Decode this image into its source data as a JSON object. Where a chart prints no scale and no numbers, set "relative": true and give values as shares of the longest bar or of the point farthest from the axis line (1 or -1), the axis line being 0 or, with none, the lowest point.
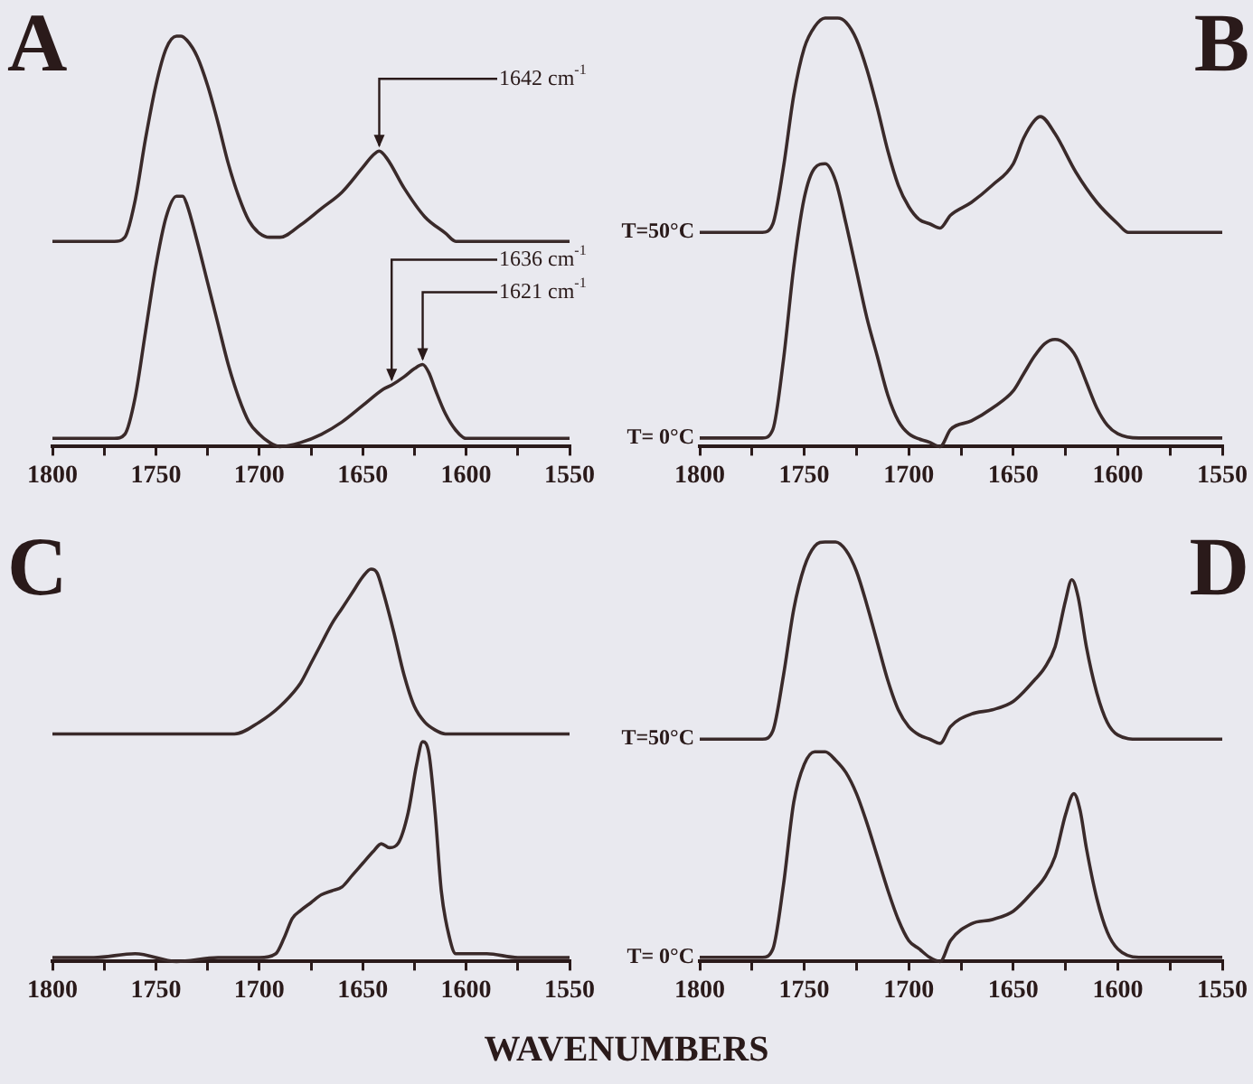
{
  "chart_data": [
    {
      "type": "line",
      "title": "A",
      "relative": true,
      "xlim": [
        1800,
        1550
      ],
      "xticks": [
        1800,
        {
          "value": 1775,
          "label": null
        },
        1750,
        {
          "value": 1725,
          "label": null
        },
        1700,
        {
          "value": 1675,
          "label": null
        },
        1650,
        {
          "value": 1625,
          "label": null
        },
        1600,
        {
          "value": 1575,
          "label": null
        },
        1550
      ],
      "grid": false,
      "legend": false,
      "marker": "none",
      "line_style": "solid",
      "annotations": [
        {
          "text": "1642 cm$^{-1}$",
          "x": 1642,
          "y": 0.72
        },
        {
          "text": "1636 cm$^{-1}$",
          "x": 1636,
          "y": 0.15
        },
        {
          "text": "1621 cm$^{-1}$",
          "x": 1621,
          "y": 0.2
        }
      ],
      "series": [
        {
          "color": "#3a2a2a",
          "x": [
            1800,
            1770,
            1765,
            1760,
            1755,
            1750,
            1745,
            1740,
            1738,
            1735,
            1730,
            1725,
            1720,
            1715,
            1710,
            1705,
            1700,
            1695,
            1690,
            1680,
            1670,
            1660,
            1650,
            1645,
            1642,
            1638,
            1630,
            1620,
            1610,
            1605,
            1600,
            1580,
            1550
          ],
          "values": [
            0.5,
            0.5,
            0.51,
            0.6,
            0.75,
            0.88,
            0.97,
            1.0,
            1.0,
            0.99,
            0.95,
            0.88,
            0.79,
            0.69,
            0.61,
            0.55,
            0.52,
            0.51,
            0.51,
            0.54,
            0.58,
            0.62,
            0.68,
            0.71,
            0.72,
            0.7,
            0.63,
            0.56,
            0.52,
            0.5,
            0.5,
            0.5,
            0.5
          ]
        },
        {
          "color": "#3a2a2a",
          "x": [
            1800,
            1770,
            1765,
            1760,
            1755,
            1750,
            1745,
            1740,
            1737,
            1735,
            1730,
            1725,
            1720,
            1715,
            1710,
            1705,
            1700,
            1695,
            1690,
            1680,
            1670,
            1660,
            1650,
            1640,
            1636,
            1630,
            1625,
            1621,
            1618,
            1615,
            1610,
            1605,
            1600,
            1590,
            1550
          ],
          "values": [
            0.02,
            0.02,
            0.03,
            0.12,
            0.28,
            0.44,
            0.56,
            0.61,
            0.61,
            0.59,
            0.5,
            0.4,
            0.3,
            0.2,
            0.12,
            0.06,
            0.03,
            0.01,
            0,
            0.01,
            0.03,
            0.06,
            0.1,
            0.14,
            0.15,
            0.17,
            0.19,
            0.2,
            0.18,
            0.14,
            0.08,
            0.04,
            0.02,
            0.02,
            0.02
          ]
        }
      ]
    },
    {
      "type": "line",
      "title": "B",
      "relative": true,
      "xlim": [
        1800,
        1550
      ],
      "xticks": [
        1800,
        {
          "value": 1775,
          "label": null
        },
        1750,
        {
          "value": 1725,
          "label": null
        },
        1700,
        {
          "value": 1675,
          "label": null
        },
        1650,
        {
          "value": 1625,
          "label": null
        },
        1600,
        {
          "value": 1575,
          "label": null
        },
        1550
      ],
      "grid": false,
      "legend": false,
      "marker": "none",
      "line_style": "solid",
      "series": [
        {
          "name": "T=50°C",
          "color": "#3a2a2a",
          "x": [
            1800,
            1770,
            1765,
            1760,
            1755,
            1750,
            1745,
            1740,
            1734,
            1730,
            1725,
            1720,
            1715,
            1710,
            1705,
            1700,
            1695,
            1690,
            1685,
            1680,
            1670,
            1660,
            1650,
            1645,
            1640,
            1637,
            1630,
            1620,
            1610,
            1600,
            1595,
            1550
          ],
          "values": [
            0.5,
            0.5,
            0.52,
            0.65,
            0.82,
            0.93,
            0.98,
            1.0,
            1.0,
            0.99,
            0.95,
            0.88,
            0.79,
            0.69,
            0.61,
            0.56,
            0.53,
            0.52,
            0.51,
            0.54,
            0.57,
            0.61,
            0.66,
            0.72,
            0.76,
            0.77,
            0.73,
            0.64,
            0.57,
            0.52,
            0.5,
            0.5
          ]
        },
        {
          "name": "T= 0°C",
          "color": "#3a2a2a",
          "x": [
            1800,
            1770,
            1765,
            1760,
            1755,
            1750,
            1745,
            1740,
            1735,
            1730,
            1725,
            1720,
            1715,
            1710,
            1705,
            1700,
            1690,
            1685,
            1680,
            1670,
            1660,
            1650,
            1645,
            1640,
            1635,
            1630,
            1625,
            1620,
            1615,
            1610,
            1605,
            1600,
            1590,
            1550
          ],
          "values": [
            0.02,
            0.02,
            0.04,
            0.2,
            0.42,
            0.58,
            0.65,
            0.66,
            0.62,
            0.52,
            0.41,
            0.3,
            0.21,
            0.12,
            0.06,
            0.03,
            0.01,
            0,
            0.04,
            0.06,
            0.09,
            0.13,
            0.17,
            0.21,
            0.24,
            0.25,
            0.24,
            0.21,
            0.15,
            0.09,
            0.05,
            0.03,
            0.02,
            0.02
          ]
        }
      ]
    },
    {
      "type": "line",
      "title": "C",
      "relative": true,
      "xlim": [
        1800,
        1550
      ],
      "xlabel": "WAVENUMBERS",
      "xticks": [
        1800,
        {
          "value": 1775,
          "label": null
        },
        1750,
        {
          "value": 1725,
          "label": null
        },
        1700,
        {
          "value": 1675,
          "label": null
        },
        1650,
        {
          "value": 1625,
          "label": null
        },
        1600,
        {
          "value": 1575,
          "label": null
        },
        1550
      ],
      "grid": false,
      "legend": false,
      "marker": "none",
      "line_style": "solid",
      "series": [
        {
          "color": "#3a2a2a",
          "x": [
            1800,
            1780,
            1750,
            1720,
            1712,
            1700,
            1690,
            1680,
            1675,
            1670,
            1665,
            1660,
            1655,
            1650,
            1646,
            1643,
            1640,
            1635,
            1630,
            1625,
            1620,
            1615,
            1610,
            1580,
            1550
          ],
          "values": [
            0.58,
            0.58,
            0.58,
            0.58,
            0.58,
            0.61,
            0.65,
            0.71,
            0.76,
            0.81,
            0.86,
            0.9,
            0.94,
            0.98,
            1.0,
            0.99,
            0.94,
            0.84,
            0.73,
            0.65,
            0.61,
            0.59,
            0.58,
            0.58,
            0.58
          ]
        },
        {
          "color": "#3a2a2a",
          "x": [
            1800,
            1780,
            1760,
            1740,
            1720,
            1700,
            1692,
            1688,
            1684,
            1680,
            1675,
            1670,
            1665,
            1660,
            1655,
            1650,
            1645,
            1641,
            1637,
            1633,
            1628,
            1624,
            1621,
            1618,
            1615,
            1612,
            1608,
            1605,
            1590,
            1575,
            1560,
            1550
          ],
          "values": [
            0.01,
            0.01,
            0.02,
            0,
            0.01,
            0.01,
            0.02,
            0.06,
            0.11,
            0.13,
            0.15,
            0.17,
            0.18,
            0.19,
            0.22,
            0.25,
            0.28,
            0.3,
            0.29,
            0.3,
            0.38,
            0.5,
            0.56,
            0.53,
            0.38,
            0.18,
            0.06,
            0.02,
            0.02,
            0.01,
            0.01,
            0.01
          ]
        }
      ]
    },
    {
      "type": "line",
      "title": "D",
      "relative": true,
      "xlim": [
        1800,
        1550
      ],
      "xticks": [
        1800,
        {
          "value": 1775,
          "label": null
        },
        1750,
        {
          "value": 1725,
          "label": null
        },
        1700,
        {
          "value": 1675,
          "label": null
        },
        1650,
        {
          "value": 1625,
          "label": null
        },
        1600,
        {
          "value": 1575,
          "label": null
        },
        1550
      ],
      "grid": false,
      "legend": false,
      "marker": "none",
      "line_style": "solid",
      "series": [
        {
          "name": "T=50°C",
          "color": "#3a2a2a",
          "x": [
            1800,
            1770,
            1765,
            1760,
            1755,
            1750,
            1745,
            1740,
            1735,
            1730,
            1725,
            1720,
            1715,
            1710,
            1705,
            1700,
            1695,
            1690,
            1685,
            1680,
            1670,
            1660,
            1650,
            1640,
            1635,
            1630,
            1625,
            1622,
            1619,
            1615,
            1610,
            1605,
            1600,
            1590,
            1550
          ],
          "values": [
            0.53,
            0.53,
            0.55,
            0.68,
            0.84,
            0.94,
            0.99,
            1.0,
            1.0,
            0.98,
            0.93,
            0.85,
            0.76,
            0.67,
            0.6,
            0.56,
            0.54,
            0.53,
            0.52,
            0.56,
            0.59,
            0.6,
            0.62,
            0.67,
            0.7,
            0.75,
            0.86,
            0.91,
            0.87,
            0.75,
            0.64,
            0.57,
            0.54,
            0.53,
            0.53
          ]
        },
        {
          "name": "T= 0°C",
          "color": "#3a2a2a",
          "x": [
            1800,
            1770,
            1765,
            1760,
            1755,
            1750,
            1745,
            1740,
            1735,
            1730,
            1725,
            1720,
            1715,
            1710,
            1705,
            1700,
            1695,
            1690,
            1685,
            1680,
            1670,
            1660,
            1650,
            1640,
            1635,
            1630,
            1625,
            1621,
            1618,
            1615,
            1610,
            1605,
            1600,
            1590,
            1550
          ],
          "values": [
            0.01,
            0.01,
            0.03,
            0.18,
            0.38,
            0.47,
            0.5,
            0.5,
            0.48,
            0.45,
            0.4,
            0.33,
            0.25,
            0.17,
            0.1,
            0.05,
            0.03,
            0.01,
            0,
            0.05,
            0.09,
            0.1,
            0.12,
            0.17,
            0.2,
            0.25,
            0.35,
            0.4,
            0.36,
            0.27,
            0.15,
            0.07,
            0.03,
            0.01,
            0.01
          ]
        }
      ]
    }
  ]
}
